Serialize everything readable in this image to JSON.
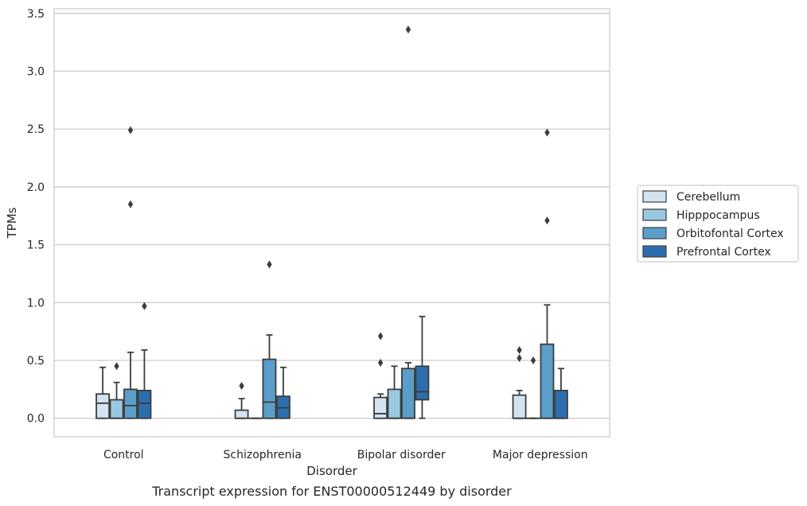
{
  "caption": "Transcript expression for ENST00000512449 by disorder",
  "chart_data": {
    "type": "boxplot",
    "title": "",
    "xlabel": "Disorder",
    "ylabel": "TPMs",
    "ylim": [
      -0.16,
      3.54
    ],
    "yticks": [
      0.0,
      0.5,
      1.0,
      1.5,
      2.0,
      2.5,
      3.0,
      3.5
    ],
    "ytick_labels": [
      "0.0",
      "0.5",
      "1.0",
      "1.5",
      "2.0",
      "2.5",
      "3.0",
      "3.5"
    ],
    "grid": "horizontal",
    "legend_position": "right",
    "categories": [
      "Control",
      "Schizophrenia",
      "Bipolar disorder",
      "Major depression"
    ],
    "series": [
      {
        "name": "Cerebellum",
        "color": "#d3e3f2",
        "boxes": [
          {
            "whislo": 0.0,
            "q1": 0.0,
            "med": 0.13,
            "q3": 0.21,
            "whishi": 0.44,
            "fliers": []
          },
          {
            "whislo": 0.0,
            "q1": 0.0,
            "med": 0.0,
            "q3": 0.07,
            "whishi": 0.17,
            "fliers": [
              0.28
            ]
          },
          {
            "whislo": 0.0,
            "q1": 0.0,
            "med": 0.04,
            "q3": 0.18,
            "whishi": 0.21,
            "fliers": [
              0.48,
              0.71
            ]
          },
          {
            "whislo": 0.0,
            "q1": 0.0,
            "med": 0.0,
            "q3": 0.2,
            "whishi": 0.24,
            "fliers": [
              0.52,
              0.59
            ]
          }
        ]
      },
      {
        "name": "Hipppocampus",
        "color": "#9ac8e0",
        "boxes": [
          {
            "whislo": 0.0,
            "q1": 0.0,
            "med": 0.0,
            "q3": 0.16,
            "whishi": 0.31,
            "fliers": [
              0.45
            ]
          },
          {
            "whislo": 0.0,
            "q1": 0.0,
            "med": 0.0,
            "q3": 0.0,
            "whishi": 0.0,
            "fliers": []
          },
          {
            "whislo": 0.0,
            "q1": 0.0,
            "med": 0.0,
            "q3": 0.25,
            "whishi": 0.45,
            "fliers": []
          },
          {
            "whislo": 0.0,
            "q1": 0.0,
            "med": 0.0,
            "q3": 0.0,
            "whishi": 0.0,
            "fliers": [
              0.5
            ]
          }
        ]
      },
      {
        "name": "Orbitofontal Cortex",
        "color": "#5a9ec9",
        "boxes": [
          {
            "whislo": 0.0,
            "q1": 0.0,
            "med": 0.11,
            "q3": 0.25,
            "whishi": 0.57,
            "fliers": [
              1.85,
              2.49
            ]
          },
          {
            "whislo": 0.0,
            "q1": 0.0,
            "med": 0.14,
            "q3": 0.51,
            "whishi": 0.72,
            "fliers": [
              1.33
            ]
          },
          {
            "whislo": 0.0,
            "q1": 0.0,
            "med": 0.0,
            "q3": 0.43,
            "whishi": 0.48,
            "fliers": [
              3.36
            ]
          },
          {
            "whislo": 0.0,
            "q1": 0.0,
            "med": 0.0,
            "q3": 0.64,
            "whishi": 0.98,
            "fliers": [
              1.71,
              2.47
            ]
          }
        ]
      },
      {
        "name": "Prefrontal Cortex",
        "color": "#2c6ead",
        "boxes": [
          {
            "whislo": 0.0,
            "q1": 0.0,
            "med": 0.13,
            "q3": 0.24,
            "whishi": 0.59,
            "fliers": [
              0.97
            ]
          },
          {
            "whislo": 0.0,
            "q1": 0.0,
            "med": 0.09,
            "q3": 0.19,
            "whishi": 0.44,
            "fliers": []
          },
          {
            "whislo": 0.0,
            "q1": 0.16,
            "med": 0.23,
            "q3": 0.45,
            "whishi": 0.88,
            "fliers": []
          },
          {
            "whislo": 0.0,
            "q1": 0.0,
            "med": 0.0,
            "q3": 0.24,
            "whishi": 0.43,
            "fliers": []
          }
        ]
      }
    ]
  }
}
